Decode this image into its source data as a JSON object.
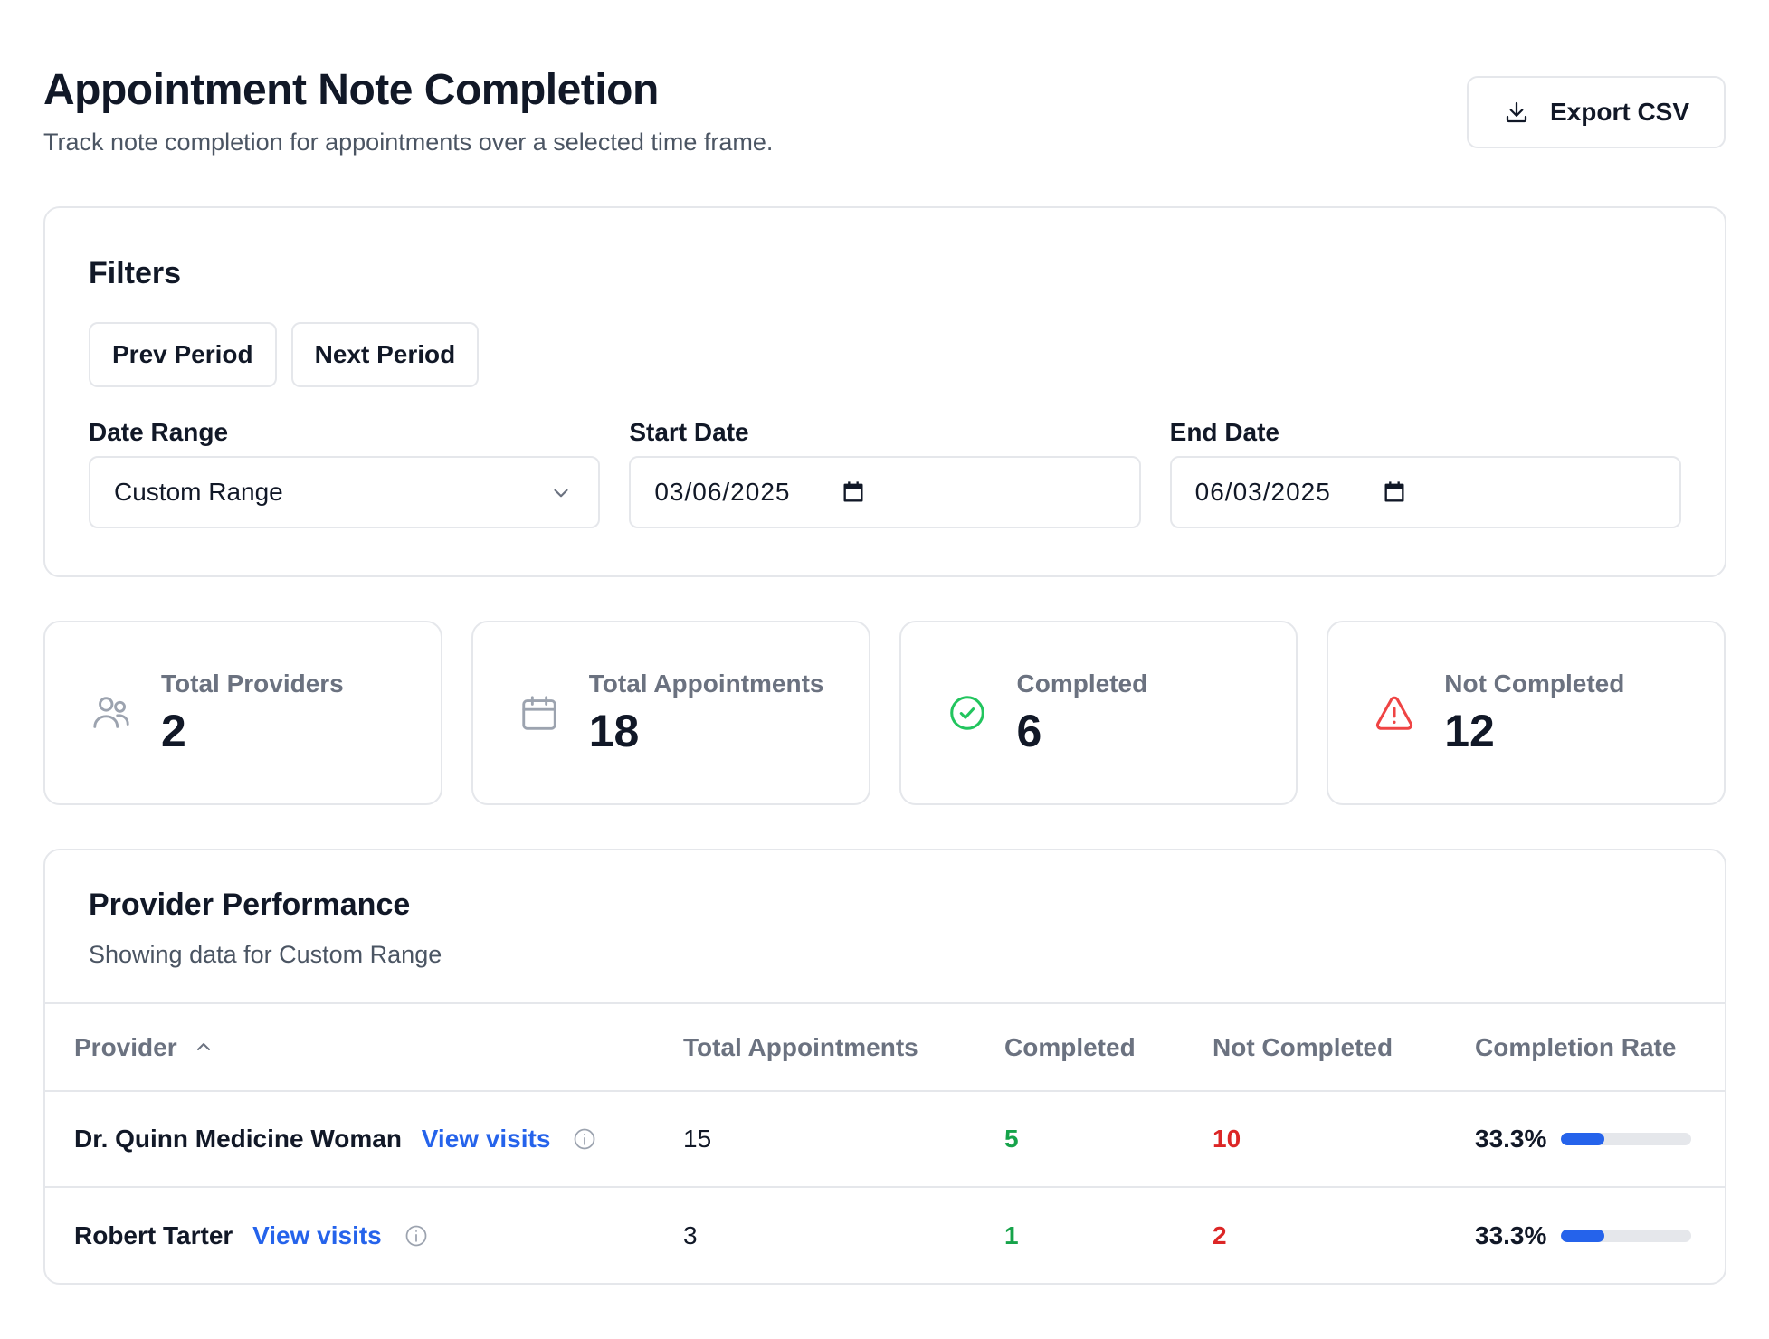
{
  "header": {
    "title": "Appointment Note Completion",
    "subtitle": "Track note completion for appointments over a selected time frame.",
    "export_label": "Export CSV"
  },
  "filters": {
    "title": "Filters",
    "prev_label": "Prev Period",
    "next_label": "Next Period",
    "date_range": {
      "label": "Date Range",
      "value": "Custom Range"
    },
    "start_date": {
      "label": "Start Date",
      "value": "03/06/2025"
    },
    "end_date": {
      "label": "End Date",
      "value": "06/03/2025"
    }
  },
  "stats": {
    "providers": {
      "label": "Total Providers",
      "value": "2",
      "icon": "users-icon"
    },
    "appointments": {
      "label": "Total Appointments",
      "value": "18",
      "icon": "calendar-icon"
    },
    "completed": {
      "label": "Completed",
      "value": "6",
      "icon": "check-circle-icon",
      "color": "#22c55e"
    },
    "not_completed": {
      "label": "Not Completed",
      "value": "12",
      "icon": "warning-triangle-icon",
      "color": "#ef4444"
    }
  },
  "performance": {
    "title": "Provider Performance",
    "subtitle": "Showing data for Custom Range",
    "columns": {
      "provider": "Provider",
      "total": "Total Appointments",
      "completed": "Completed",
      "not_completed": "Not Completed",
      "rate": "Completion Rate"
    },
    "rows": [
      {
        "name": "Dr. Quinn Medicine Woman",
        "link": "View visits",
        "total": "15",
        "completed": "5",
        "not_completed": "10",
        "rate": "33.3%",
        "rate_fraction": 0.333
      },
      {
        "name": "Robert Tarter",
        "link": "View visits",
        "total": "3",
        "completed": "1",
        "not_completed": "2",
        "rate": "33.3%",
        "rate_fraction": 0.333
      }
    ]
  },
  "colors": {
    "accent": "#2563eb",
    "success": "#16a34a",
    "danger": "#dc2626",
    "border": "#e5e7eb"
  }
}
